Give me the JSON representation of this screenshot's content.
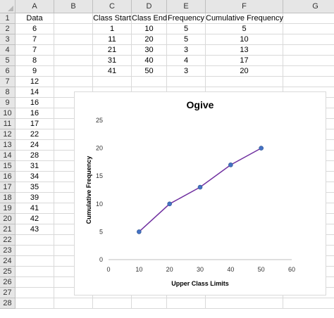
{
  "spreadsheet": {
    "columns": [
      "A",
      "B",
      "C",
      "D",
      "E",
      "F",
      "G"
    ],
    "rows": [
      "1",
      "2",
      "3",
      "4",
      "5",
      "6",
      "7",
      "8",
      "9",
      "10",
      "11",
      "12",
      "13",
      "14",
      "15",
      "16",
      "17",
      "18",
      "19",
      "20",
      "21",
      "22",
      "23",
      "24",
      "25",
      "26",
      "27",
      "28"
    ],
    "data_header": "Data",
    "data_values": [
      "6",
      "7",
      "7",
      "8",
      "9",
      "12",
      "14",
      "16",
      "16",
      "17",
      "22",
      "24",
      "28",
      "31",
      "34",
      "35",
      "39",
      "41",
      "42",
      "43"
    ],
    "table_headers": [
      "Class Start",
      "Class End",
      "Frequency",
      "Cumulative Frequency"
    ],
    "table_rows": [
      [
        "1",
        "10",
        "5",
        "5"
      ],
      [
        "11",
        "20",
        "5",
        "10"
      ],
      [
        "21",
        "30",
        "3",
        "13"
      ],
      [
        "31",
        "40",
        "4",
        "17"
      ],
      [
        "41",
        "50",
        "3",
        "20"
      ]
    ]
  },
  "chart_data": {
    "type": "line",
    "title": "Ogive",
    "xlabel": "Upper Class Limits",
    "ylabel": "Cumulative Frequency",
    "xlim": [
      0,
      60
    ],
    "ylim": [
      0,
      25
    ],
    "xticks": [
      "0",
      "10",
      "20",
      "30",
      "40",
      "50",
      "60"
    ],
    "yticks": [
      "0",
      "5",
      "10",
      "15",
      "20",
      "25"
    ],
    "grid": false,
    "legend": "none",
    "series": [
      {
        "x": [
          10,
          20,
          30,
          40,
          50
        ],
        "y": [
          5,
          10,
          13,
          17,
          20
        ]
      }
    ],
    "line_color": "#7030a0",
    "marker_color": "#4472c4"
  }
}
